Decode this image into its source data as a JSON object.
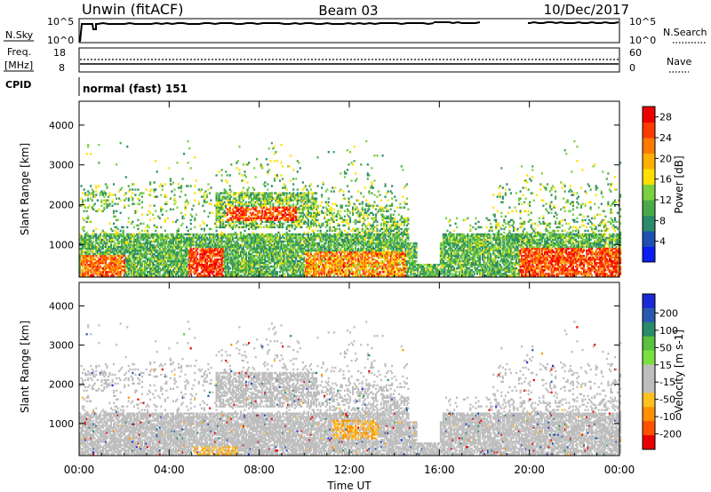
{
  "header": {
    "station": "Unwin (fitACF)",
    "beam": "Beam 03",
    "date": "10/Dec/2017"
  },
  "panels": {
    "nsky": {
      "label": "N.Sky",
      "ticks_left": [
        "10^5",
        "10^0"
      ],
      "ticks_right": [
        "10^5",
        "10^0"
      ],
      "right_label": "N.Search"
    },
    "freq": {
      "label_line1": "Freq.",
      "label_line2": "[MHz]",
      "ticks_left": [
        "18",
        "8"
      ],
      "ticks_right": [
        "60",
        "0"
      ],
      "right_label": "Nave"
    },
    "cpid": {
      "label": "CPID",
      "value": "normal (fast) 151"
    }
  },
  "colors": {
    "power_scale": [
      "#0a1ef0",
      "#1e50b4",
      "#2a8a6a",
      "#4aaa4a",
      "#7ad040",
      "#ffe000",
      "#ffb000",
      "#ff7a00",
      "#ff3a00",
      "#ee0000"
    ],
    "velocity_scale": [
      "#1a2ad8",
      "#2a5ab0",
      "#2a8a6a",
      "#5ac040",
      "#7ae040",
      "#bebebe",
      "#bebebe",
      "#ffc020",
      "#ff9000",
      "#ff5000",
      "#e80000"
    ]
  },
  "chart_data": [
    {
      "type": "heatmap",
      "name": "power",
      "ylabel": "Slant Range [km]",
      "ylim": [
        180,
        4600
      ],
      "y_ticks": [
        "1000",
        "2000",
        "3000",
        "4000"
      ],
      "x_ticks": [
        "00:00",
        "04:00",
        "08:00",
        "12:00",
        "16:00",
        "20:00",
        "00:00"
      ],
      "xlim_hours": [
        0,
        24
      ],
      "colorbar": {
        "label": "Power [dB]",
        "ticks": [
          "4",
          "8",
          "12",
          "16",
          "20",
          "24",
          "28"
        ],
        "range": [
          0,
          30
        ]
      },
      "features": [
        {
          "t0": 0.0,
          "t1": 24.0,
          "r0": 300,
          "r1": 1250,
          "v": 14
        },
        {
          "t0": 6.0,
          "t1": 9.5,
          "r0": 1550,
          "r1": 2000,
          "v": 24
        },
        {
          "t0": 19.5,
          "t1": 24.0,
          "r0": 300,
          "r1": 900,
          "v": 27
        }
      ]
    },
    {
      "type": "heatmap",
      "name": "velocity",
      "ylabel": "Slant Range [km]",
      "ylim": [
        180,
        4600
      ],
      "y_ticks": [
        "1000",
        "2000",
        "3000",
        "4000"
      ],
      "x_ticks": [
        "00:00",
        "04:00",
        "08:00",
        "12:00",
        "16:00",
        "20:00",
        "00:00"
      ],
      "xlabel": "Time UT",
      "xlim_hours": [
        0,
        24
      ],
      "colorbar": {
        "label": "Velocity [m s-1]",
        "ticks": [
          "200",
          "100",
          "50",
          "15",
          "-15",
          "-50",
          "-100",
          "-200"
        ],
        "range": [
          -200,
          200
        ]
      },
      "features": [
        {
          "t0": 0.0,
          "t1": 24.0,
          "r0": 300,
          "r1": 1250,
          "v": 0
        },
        {
          "t0": 11.2,
          "t1": 13.3,
          "r0": 600,
          "r1": 1100,
          "v": -40
        }
      ]
    }
  ]
}
